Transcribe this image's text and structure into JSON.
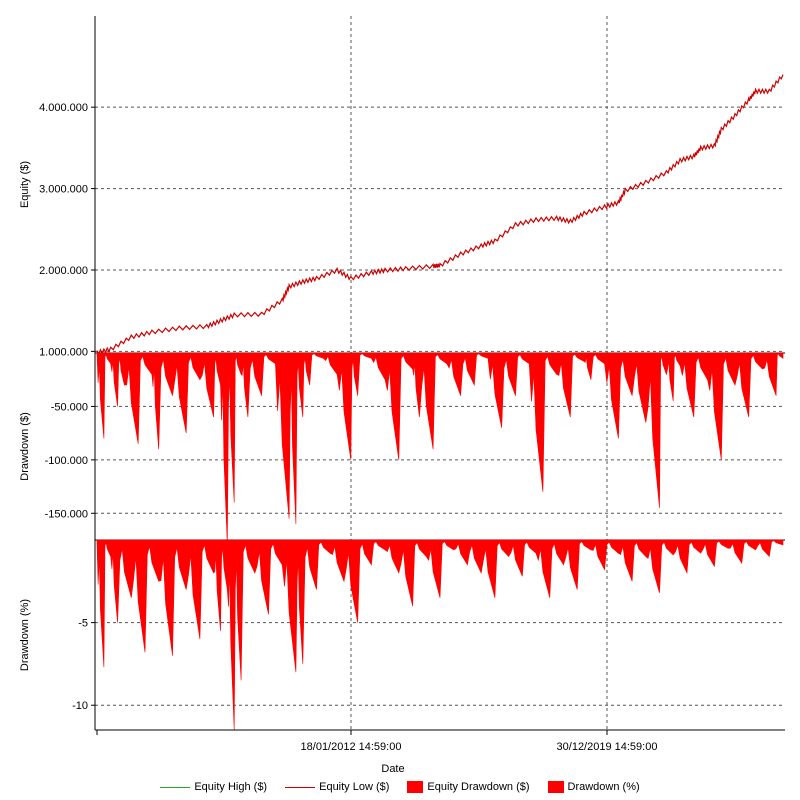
{
  "chart_data": {
    "type": "area",
    "xlabel": "Date",
    "x_ticks": [
      "18/01/2012 14:59:00",
      "30/12/2019 14:59:00"
    ],
    "colors": {
      "equity_high": "#2ca02c",
      "equity_low": "#cc0000",
      "equity_drawdown": "#ff0000",
      "drawdown_pct": "#ff0000"
    },
    "legend": {
      "placement": "bottom",
      "items": [
        {
          "label": "Equity High ($)",
          "kind": "line",
          "color": "#2ca02c"
        },
        {
          "label": "Equity Low ($)",
          "kind": "line",
          "color": "#cc0000"
        },
        {
          "label": "Equity Drawdown ($)",
          "kind": "box",
          "color": "#ff0000"
        },
        {
          "label": "Drawdown (%)",
          "kind": "box",
          "color": "#ff0000"
        }
      ]
    },
    "panels": [
      {
        "id": "equity",
        "ylabel": "Equity ($)",
        "y_ticks": [
          {
            "value": 1000000,
            "label": "1.000.000"
          },
          {
            "value": 2000000,
            "label": "2.000.000"
          },
          {
            "value": 3000000,
            "label": "3.000.000"
          },
          {
            "value": 4000000,
            "label": "4.000.000"
          }
        ],
        "ylim": [
          980000,
          5120000
        ],
        "grid": true,
        "series": [
          {
            "name": "Equity Low ($)",
            "x": [
              0,
              0.02,
              0.05,
              0.08,
              0.12,
              0.16,
              0.18,
              0.2,
              0.24,
              0.27,
              0.28,
              0.3,
              0.32,
              0.35,
              0.37,
              0.4,
              0.42,
              0.45,
              0.49,
              0.5,
              0.53,
              0.56,
              0.58,
              0.61,
              0.64,
              0.67,
              0.69,
              0.71,
              0.74,
              0.76,
              0.77,
              0.8,
              0.83,
              0.85,
              0.87,
              0.88,
              0.9,
              0.91,
              0.93,
              0.95,
              0.96,
              0.98,
              1.0
            ],
            "y": [
              990000,
              1030000,
              1180000,
              1240000,
              1290000,
              1310000,
              1380000,
              1450000,
              1460000,
              1630000,
              1800000,
              1860000,
              1900000,
              2000000,
              1900000,
              1970000,
              2000000,
              2020000,
              2050000,
              2060000,
              2200000,
              2300000,
              2360000,
              2560000,
              2620000,
              2640000,
              2600000,
              2700000,
              2780000,
              2830000,
              2980000,
              3080000,
              3200000,
              3350000,
              3400000,
              3500000,
              3530000,
              3730000,
              3900000,
              4090000,
              4200000,
              4200000,
              4400000
            ]
          }
        ]
      },
      {
        "id": "drawdown_usd",
        "ylabel": "Drawdown ($)",
        "y_ticks": [
          {
            "value": -50000,
            "label": "-50.000"
          },
          {
            "value": -100000,
            "label": "-100.000"
          },
          {
            "value": -150000,
            "label": "-150.000"
          }
        ],
        "ylim": [
          -175000,
          0
        ],
        "grid": true,
        "series": [
          {
            "name": "Equity Drawdown ($)",
            "x": [
              0,
              0.01,
              0.02,
              0.03,
              0.04,
              0.06,
              0.08,
              0.09,
              0.11,
              0.13,
              0.15,
              0.17,
              0.18,
              0.19,
              0.2,
              0.21,
              0.22,
              0.24,
              0.26,
              0.28,
              0.29,
              0.3,
              0.31,
              0.33,
              0.35,
              0.37,
              0.38,
              0.4,
              0.42,
              0.44,
              0.46,
              0.47,
              0.49,
              0.51,
              0.53,
              0.55,
              0.57,
              0.59,
              0.61,
              0.63,
              0.65,
              0.67,
              0.69,
              0.71,
              0.72,
              0.74,
              0.76,
              0.78,
              0.8,
              0.82,
              0.83,
              0.84,
              0.85,
              0.87,
              0.89,
              0.91,
              0.93,
              0.95,
              0.97,
              0.99,
              1.0
            ],
            "y": [
              -2000,
              -80000,
              -10000,
              -50000,
              -30000,
              -85000,
              -20000,
              -90000,
              -40000,
              -75000,
              -25000,
              -60000,
              -30000,
              -180000,
              -140000,
              -20000,
              -60000,
              -40000,
              -10000,
              -155000,
              -160000,
              -60000,
              -30000,
              -5000,
              -20000,
              -100000,
              -40000,
              -5000,
              -25000,
              -100000,
              -15000,
              -60000,
              -90000,
              -10000,
              -40000,
              -30000,
              -5000,
              -70000,
              -40000,
              -10000,
              -130000,
              -20000,
              -60000,
              -8000,
              -25000,
              -10000,
              -80000,
              -40000,
              -65000,
              -145000,
              -20000,
              -45000,
              -12000,
              -60000,
              -25000,
              -100000,
              -30000,
              -60000,
              -15000,
              -40000,
              -5000
            ]
          }
        ]
      },
      {
        "id": "drawdown_pct",
        "ylabel": "Drawdown (%)",
        "y_ticks": [
          {
            "value": -5,
            "label": "-5"
          },
          {
            "value": -10,
            "label": "-10"
          }
        ],
        "ylim": [
          -11.5,
          0
        ],
        "grid": true,
        "series": [
          {
            "name": "Drawdown (%)",
            "x": [
              0,
              0.01,
              0.02,
              0.03,
              0.05,
              0.07,
              0.09,
              0.11,
              0.13,
              0.15,
              0.17,
              0.18,
              0.19,
              0.2,
              0.21,
              0.23,
              0.25,
              0.27,
              0.29,
              0.3,
              0.32,
              0.34,
              0.36,
              0.38,
              0.4,
              0.42,
              0.44,
              0.46,
              0.48,
              0.5,
              0.52,
              0.54,
              0.56,
              0.58,
              0.6,
              0.62,
              0.64,
              0.66,
              0.68,
              0.7,
              0.72,
              0.74,
              0.76,
              0.78,
              0.8,
              0.82,
              0.84,
              0.86,
              0.88,
              0.9,
              0.92,
              0.94,
              0.96,
              0.98,
              1.0
            ],
            "y": [
              -0.2,
              -7.7,
              -1.0,
              -5.0,
              -3.5,
              -6.8,
              -2.5,
              -7.0,
              -3.0,
              -6.0,
              -2.0,
              -5.5,
              -3.0,
              -11.5,
              -8.5,
              -2.0,
              -4.5,
              -1.5,
              -8.0,
              -7.5,
              -3.0,
              -0.8,
              -2.5,
              -5.0,
              -1.5,
              -0.6,
              -2.0,
              -4.0,
              -1.0,
              -3.5,
              -0.6,
              -1.5,
              -2.0,
              -3.5,
              -1.0,
              -2.2,
              -0.8,
              -3.5,
              -1.5,
              -3.0,
              -0.6,
              -1.8,
              -0.8,
              -2.5,
              -1.0,
              -3.2,
              -0.9,
              -2.0,
              -0.8,
              -1.6,
              -0.5,
              -1.4,
              -0.6,
              -1.0,
              -0.3
            ]
          }
        ]
      }
    ]
  }
}
